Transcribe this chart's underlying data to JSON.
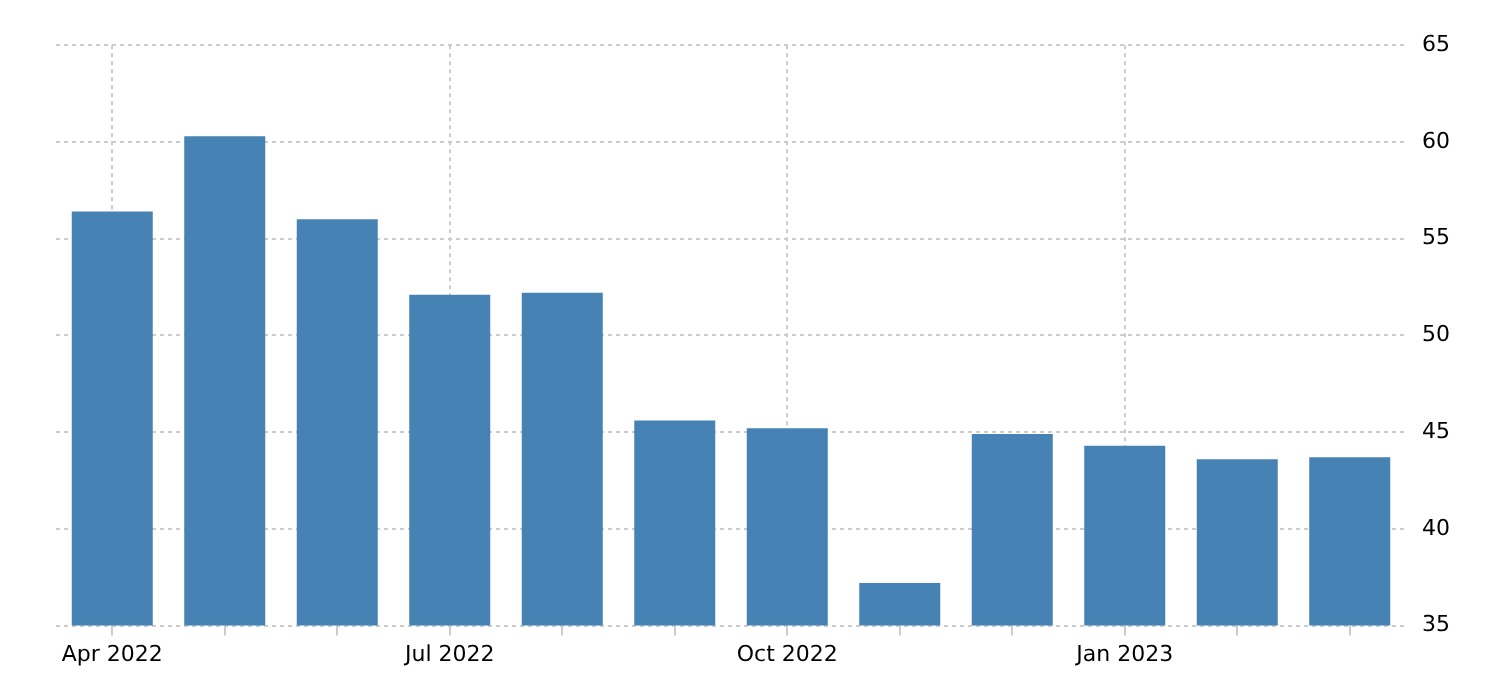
{
  "chart_data": {
    "type": "bar",
    "categories": [
      "Apr 2022",
      null,
      null,
      "Jul 2022",
      null,
      null,
      "Oct 2022",
      null,
      null,
      "Jan 2023",
      null,
      null
    ],
    "series": [
      {
        "color": "#4682b4",
        "values": [
          56.4,
          60.3,
          56.0,
          52.1,
          52.2,
          45.6,
          45.2,
          37.2,
          44.9,
          44.3,
          43.6,
          43.7
        ]
      }
    ],
    "ylim": [
      35,
      65
    ],
    "yticks": [
      35,
      40,
      45,
      50,
      55,
      60,
      65
    ],
    "grid": true,
    "legend": false
  }
}
